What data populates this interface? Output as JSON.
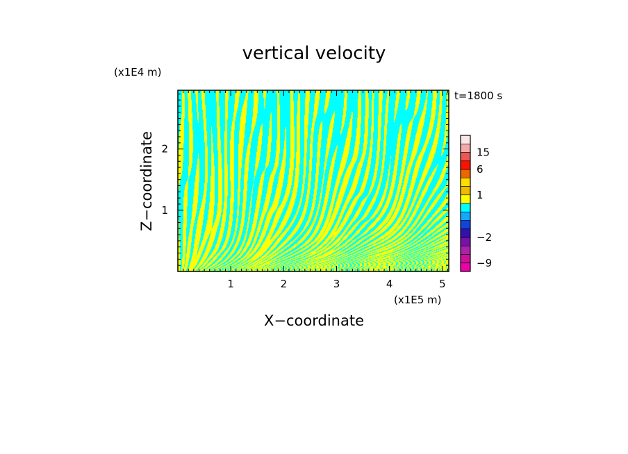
{
  "chart_data": {
    "type": "heatmap",
    "title": "vertical velocity",
    "time_label": "t=1800 s",
    "xlabel": "X−coordinate",
    "ylabel": "Z−coordinate",
    "x_unit": "(x1E5 m)",
    "y_unit": "(x1E4 m)",
    "xlim": [
      0,
      5.12
    ],
    "ylim": [
      0,
      2.96
    ],
    "x_ticks": [
      1,
      2,
      3,
      4,
      5
    ],
    "x_tick_labels": [
      "1",
      "2",
      "3",
      "4",
      "5"
    ],
    "y_ticks": [
      1,
      2
    ],
    "y_tick_labels": [
      "1",
      "2"
    ],
    "field_pattern": "alternating narrow updraft/downdraft bands, finest near the surface, broadening with height",
    "colorbar": {
      "levels": [
        -12,
        -9,
        -6,
        -4,
        -2,
        -1,
        -0.5,
        0,
        0.5,
        1,
        2,
        4,
        6,
        10,
        15,
        20,
        25
      ],
      "colors": [
        "#ee00aa",
        "#cc1199",
        "#aa22aa",
        "#7711aa",
        "#3311aa",
        "#1144dd",
        "#11aaff",
        "#00ffff",
        "#ffff00",
        "#eebb00",
        "#ffdd00",
        "#ee6600",
        "#ff1100",
        "#ee5555",
        "#f5aaaa",
        "#fde5e5"
      ],
      "tick_values": [
        15,
        6,
        1,
        -2,
        -9
      ],
      "tick_labels": [
        "15",
        "6",
        "1",
        "−2",
        "−9"
      ]
    },
    "colors": {
      "updraft": "#ffff00",
      "downdraft": "#00ffff",
      "frame": "#000000"
    }
  }
}
